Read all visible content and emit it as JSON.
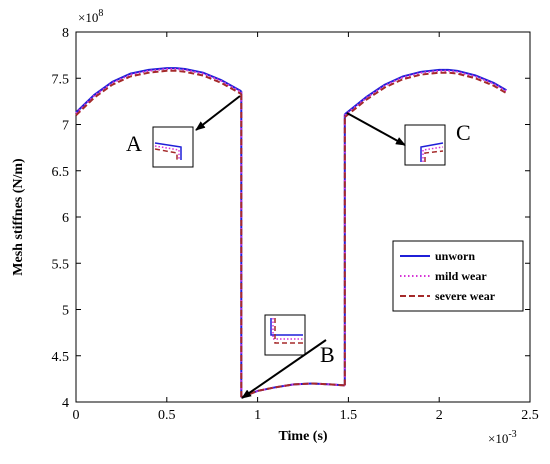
{
  "chart_data": {
    "type": "line",
    "title": "",
    "xlabel": "Time  (s)",
    "ylabel": "Mesh stiffnes  (N/m)",
    "x_multiplier_label": "×10",
    "x_multiplier_exp": "-3",
    "y_multiplier_label": "×10",
    "y_multiplier_exp": "8",
    "xlim": [
      0,
      2.5
    ],
    "ylim": [
      4,
      8
    ],
    "x_scale_note": "x values in units of 1e-3 s; y values in units of 1e8 N/m",
    "xticks": [
      "0",
      "0.5",
      "1",
      "1.5",
      "2",
      "2.5"
    ],
    "yticks": [
      "4",
      "4.5",
      "5",
      "5.5",
      "6",
      "6.5",
      "7",
      "7.5",
      "8"
    ],
    "grid": false,
    "legend_position": "right",
    "series": [
      {
        "name": "unworn",
        "color": "#1f1fd8",
        "dash": "solid",
        "segments": [
          {
            "x": [
              0.0,
              0.1,
              0.2,
              0.3,
              0.4,
              0.5,
              0.55,
              0.6,
              0.7,
              0.8,
              0.91
            ],
            "y": [
              7.13,
              7.32,
              7.46,
              7.55,
              7.59,
              7.61,
              7.61,
              7.6,
              7.56,
              7.48,
              7.36
            ]
          },
          {
            "x": [
              0.91,
              0.91
            ],
            "y": [
              7.36,
              4.05
            ]
          },
          {
            "x": [
              0.91,
              1.0,
              1.1,
              1.2,
              1.3,
              1.4,
              1.48
            ],
            "y": [
              4.05,
              4.12,
              4.16,
              4.19,
              4.2,
              4.19,
              4.18
            ]
          },
          {
            "x": [
              1.48,
              1.48
            ],
            "y": [
              4.18,
              7.11
            ]
          },
          {
            "x": [
              1.48,
              1.6,
              1.7,
              1.8,
              1.9,
              2.0,
              2.05,
              2.1,
              2.2,
              2.3,
              2.37
            ],
            "y": [
              7.11,
              7.3,
              7.43,
              7.52,
              7.57,
              7.59,
              7.59,
              7.58,
              7.53,
              7.45,
              7.37
            ]
          }
        ]
      },
      {
        "name": "mild wear",
        "color": "#d633d6",
        "dash": "dotted",
        "segments": [
          {
            "x": [
              0.0,
              0.1,
              0.2,
              0.3,
              0.4,
              0.5,
              0.55,
              0.6,
              0.7,
              0.8,
              0.91
            ],
            "y": [
              7.12,
              7.31,
              7.45,
              7.54,
              7.58,
              7.6,
              7.6,
              7.59,
              7.55,
              7.47,
              7.35
            ]
          },
          {
            "x": [
              0.91,
              0.91
            ],
            "y": [
              7.35,
              4.05
            ]
          },
          {
            "x": [
              0.91,
              1.0,
              1.1,
              1.2,
              1.3,
              1.4,
              1.48
            ],
            "y": [
              4.05,
              4.12,
              4.16,
              4.19,
              4.2,
              4.19,
              4.18
            ]
          },
          {
            "x": [
              1.48,
              1.48
            ],
            "y": [
              4.18,
              7.1
            ]
          },
          {
            "x": [
              1.48,
              1.6,
              1.7,
              1.8,
              1.9,
              2.0,
              2.05,
              2.1,
              2.2,
              2.3,
              2.37
            ],
            "y": [
              7.1,
              7.29,
              7.42,
              7.51,
              7.56,
              7.58,
              7.58,
              7.57,
              7.52,
              7.44,
              7.36
            ]
          }
        ]
      },
      {
        "name": "severe wear",
        "color": "#a52a2a",
        "dash": "dashed",
        "segments": [
          {
            "x": [
              0.0,
              0.1,
              0.2,
              0.3,
              0.4,
              0.5,
              0.55,
              0.6,
              0.7,
              0.8,
              0.91
            ],
            "y": [
              7.1,
              7.29,
              7.43,
              7.52,
              7.56,
              7.58,
              7.58,
              7.57,
              7.53,
              7.45,
              7.33
            ]
          },
          {
            "x": [
              0.91,
              0.91
            ],
            "y": [
              7.33,
              4.05
            ]
          },
          {
            "x": [
              0.91,
              1.0,
              1.1,
              1.2,
              1.3,
              1.4,
              1.48
            ],
            "y": [
              4.05,
              4.12,
              4.16,
              4.19,
              4.2,
              4.19,
              4.18
            ]
          },
          {
            "x": [
              1.48,
              1.48
            ],
            "y": [
              4.18,
              7.08
            ]
          },
          {
            "x": [
              1.48,
              1.6,
              1.7,
              1.8,
              1.9,
              2.0,
              2.05,
              2.1,
              2.2,
              2.3,
              2.37
            ],
            "y": [
              7.08,
              7.27,
              7.4,
              7.49,
              7.54,
              7.56,
              7.56,
              7.55,
              7.5,
              7.42,
              7.34
            ]
          }
        ]
      }
    ],
    "annotations": [
      {
        "label": "A",
        "point": [
          0.91,
          7.34
        ]
      },
      {
        "label": "B",
        "point": [
          0.91,
          4.05
        ]
      },
      {
        "label": "C",
        "point": [
          1.48,
          7.1
        ]
      }
    ]
  }
}
